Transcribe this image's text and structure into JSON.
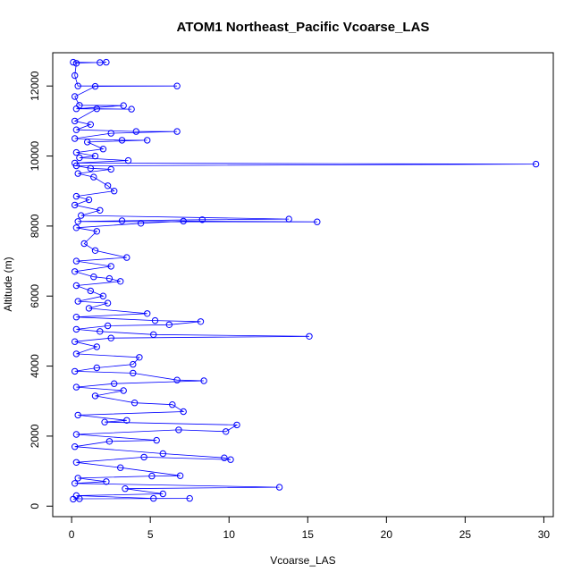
{
  "chart_data": {
    "type": "line",
    "title": "ATOM1 Northeast_Pacific Vcoarse_LAS",
    "xlabel": "Vcoarse_LAS",
    "ylabel": "Altitude (m)",
    "xlim": [
      -1.2,
      30.6
    ],
    "ylim": [
      -300,
      12950
    ],
    "x_ticks": [
      0,
      5,
      10,
      15,
      20,
      25,
      30
    ],
    "y_ticks": [
      0,
      2000,
      4000,
      6000,
      8000,
      10000,
      12000
    ],
    "grid": false,
    "legend": "none",
    "series_color": "#0000ff",
    "markers": "open-circle",
    "series": [
      {
        "points": [
          {
            "x": 0.1,
            "y": 12680
          },
          {
            "x": 1.8,
            "y": 12670
          },
          {
            "x": 2.2,
            "y": 12680
          },
          {
            "x": 0.3,
            "y": 12650
          },
          {
            "x": 0.2,
            "y": 12300
          },
          {
            "x": 0.4,
            "y": 12000
          },
          {
            "x": 6.7,
            "y": 12000
          },
          {
            "x": 1.5,
            "y": 11990
          },
          {
            "x": 0.2,
            "y": 11700
          },
          {
            "x": 0.5,
            "y": 11450
          },
          {
            "x": 3.3,
            "y": 11440
          },
          {
            "x": 0.3,
            "y": 11350
          },
          {
            "x": 3.8,
            "y": 11340
          },
          {
            "x": 1.6,
            "y": 11350
          },
          {
            "x": 0.2,
            "y": 11000
          },
          {
            "x": 1.2,
            "y": 10900
          },
          {
            "x": 0.3,
            "y": 10750
          },
          {
            "x": 4.1,
            "y": 10700
          },
          {
            "x": 6.7,
            "y": 10700
          },
          {
            "x": 2.5,
            "y": 10650
          },
          {
            "x": 0.2,
            "y": 10500
          },
          {
            "x": 3.2,
            "y": 10450
          },
          {
            "x": 4.8,
            "y": 10450
          },
          {
            "x": 1.0,
            "y": 10400
          },
          {
            "x": 2.0,
            "y": 10200
          },
          {
            "x": 0.3,
            "y": 10100
          },
          {
            "x": 1.5,
            "y": 10000
          },
          {
            "x": 0.5,
            "y": 9950
          },
          {
            "x": 3.6,
            "y": 9870
          },
          {
            "x": 0.2,
            "y": 9800
          },
          {
            "x": 29.5,
            "y": 9770
          },
          {
            "x": 0.3,
            "y": 9720
          },
          {
            "x": 1.2,
            "y": 9650
          },
          {
            "x": 2.5,
            "y": 9620
          },
          {
            "x": 0.4,
            "y": 9500
          },
          {
            "x": 1.4,
            "y": 9400
          },
          {
            "x": 2.3,
            "y": 9150
          },
          {
            "x": 2.7,
            "y": 9000
          },
          {
            "x": 0.3,
            "y": 8850
          },
          {
            "x": 1.1,
            "y": 8750
          },
          {
            "x": 0.2,
            "y": 8600
          },
          {
            "x": 1.8,
            "y": 8450
          },
          {
            "x": 0.6,
            "y": 8300
          },
          {
            "x": 13.8,
            "y": 8200
          },
          {
            "x": 8.3,
            "y": 8180
          },
          {
            "x": 3.2,
            "y": 8150
          },
          {
            "x": 0.4,
            "y": 8130
          },
          {
            "x": 15.6,
            "y": 8120
          },
          {
            "x": 7.1,
            "y": 8140
          },
          {
            "x": 4.4,
            "y": 8080
          },
          {
            "x": 0.3,
            "y": 7950
          },
          {
            "x": 1.6,
            "y": 7850
          },
          {
            "x": 0.8,
            "y": 7500
          },
          {
            "x": 1.5,
            "y": 7300
          },
          {
            "x": 3.5,
            "y": 7100
          },
          {
            "x": 0.3,
            "y": 7000
          },
          {
            "x": 2.5,
            "y": 6850
          },
          {
            "x": 0.2,
            "y": 6700
          },
          {
            "x": 1.4,
            "y": 6550
          },
          {
            "x": 2.4,
            "y": 6500
          },
          {
            "x": 3.1,
            "y": 6420
          },
          {
            "x": 0.3,
            "y": 6300
          },
          {
            "x": 1.2,
            "y": 6150
          },
          {
            "x": 2.0,
            "y": 6000
          },
          {
            "x": 0.4,
            "y": 5850
          },
          {
            "x": 2.3,
            "y": 5800
          },
          {
            "x": 1.1,
            "y": 5650
          },
          {
            "x": 4.8,
            "y": 5500
          },
          {
            "x": 0.3,
            "y": 5400
          },
          {
            "x": 5.3,
            "y": 5300
          },
          {
            "x": 8.2,
            "y": 5270
          },
          {
            "x": 6.2,
            "y": 5180
          },
          {
            "x": 2.3,
            "y": 5150
          },
          {
            "x": 0.3,
            "y": 5050
          },
          {
            "x": 1.8,
            "y": 4990
          },
          {
            "x": 5.2,
            "y": 4900
          },
          {
            "x": 15.1,
            "y": 4850
          },
          {
            "x": 2.5,
            "y": 4800
          },
          {
            "x": 0.2,
            "y": 4700
          },
          {
            "x": 1.6,
            "y": 4550
          },
          {
            "x": 0.3,
            "y": 4350
          },
          {
            "x": 4.3,
            "y": 4250
          },
          {
            "x": 3.9,
            "y": 4050
          },
          {
            "x": 1.6,
            "y": 3950
          },
          {
            "x": 0.2,
            "y": 3850
          },
          {
            "x": 3.9,
            "y": 3800
          },
          {
            "x": 6.7,
            "y": 3600
          },
          {
            "x": 8.4,
            "y": 3580
          },
          {
            "x": 2.7,
            "y": 3500
          },
          {
            "x": 0.3,
            "y": 3400
          },
          {
            "x": 3.3,
            "y": 3300
          },
          {
            "x": 1.5,
            "y": 3150
          },
          {
            "x": 4.0,
            "y": 2950
          },
          {
            "x": 6.4,
            "y": 2900
          },
          {
            "x": 7.1,
            "y": 2700
          },
          {
            "x": 0.4,
            "y": 2600
          },
          {
            "x": 3.5,
            "y": 2450
          },
          {
            "x": 2.1,
            "y": 2400
          },
          {
            "x": 10.5,
            "y": 2320
          },
          {
            "x": 9.8,
            "y": 2130
          },
          {
            "x": 6.8,
            "y": 2180
          },
          {
            "x": 0.3,
            "y": 2050
          },
          {
            "x": 5.4,
            "y": 1880
          },
          {
            "x": 2.4,
            "y": 1850
          },
          {
            "x": 0.2,
            "y": 1700
          },
          {
            "x": 5.8,
            "y": 1500
          },
          {
            "x": 9.7,
            "y": 1380
          },
          {
            "x": 10.1,
            "y": 1330
          },
          {
            "x": 4.6,
            "y": 1400
          },
          {
            "x": 0.3,
            "y": 1250
          },
          {
            "x": 3.1,
            "y": 1100
          },
          {
            "x": 6.9,
            "y": 870
          },
          {
            "x": 5.1,
            "y": 860
          },
          {
            "x": 0.4,
            "y": 800
          },
          {
            "x": 2.2,
            "y": 700
          },
          {
            "x": 0.2,
            "y": 650
          },
          {
            "x": 13.2,
            "y": 540
          },
          {
            "x": 3.4,
            "y": 500
          },
          {
            "x": 5.8,
            "y": 350
          },
          {
            "x": 0.3,
            "y": 300
          },
          {
            "x": 5.2,
            "y": 220
          },
          {
            "x": 7.5,
            "y": 220
          },
          {
            "x": 0.5,
            "y": 210
          },
          {
            "x": 0.1,
            "y": 200
          }
        ]
      }
    ]
  }
}
